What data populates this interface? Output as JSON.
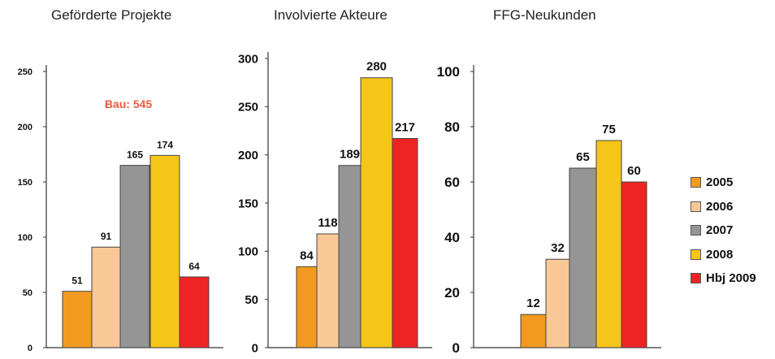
{
  "colors": {
    "2005": "#f29a1f",
    "2006": "#f9c896",
    "2007": "#959595",
    "2008": "#f5c518",
    "Hbj 2009": "#ee2424",
    "annotation": "#f05a3c"
  },
  "legend": [
    "2005",
    "2006",
    "2007",
    "2008",
    "Hbj 2009"
  ],
  "chart_data": [
    {
      "type": "bar",
      "title": "Geförderte Projekte",
      "categories": [
        "2005",
        "2006",
        "2007",
        "2008",
        "Hbj 2009"
      ],
      "values": [
        51,
        91,
        165,
        174,
        64
      ],
      "value_labels": [
        "51",
        "91",
        "165",
        "174",
        "64"
      ],
      "yticks": [
        "0",
        "50",
        "100",
        "150",
        "200",
        "250"
      ],
      "ylim": [
        0,
        250
      ],
      "annotation": "Bau:  545"
    },
    {
      "type": "bar",
      "title": "Involvierte Akteure",
      "categories": [
        "2005",
        "2006",
        "2007",
        "2008",
        "Hbj 2009"
      ],
      "values": [
        84,
        118,
        189,
        280,
        217
      ],
      "value_labels": [
        "84",
        "118",
        "189",
        "280",
        "217"
      ],
      "yticks": [
        "0",
        "50",
        "100",
        "150",
        "200",
        "250",
        "300"
      ],
      "ylim": [
        0,
        300
      ]
    },
    {
      "type": "bar",
      "title": "FFG-Neukunden",
      "categories": [
        "2005",
        "2006",
        "2007",
        "2008",
        "Hbj 2009"
      ],
      "values": [
        12,
        32,
        65,
        75,
        60
      ],
      "value_labels": [
        "12",
        "32",
        "65",
        "75",
        "60"
      ],
      "yticks": [
        "0",
        "20",
        "40",
        "60",
        "80",
        "100"
      ],
      "ylim": [
        0,
        100
      ]
    }
  ]
}
